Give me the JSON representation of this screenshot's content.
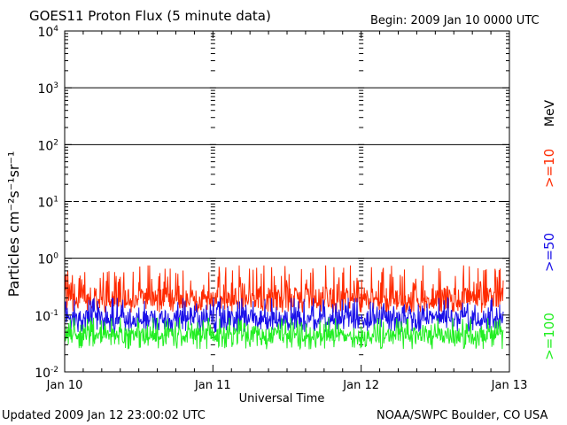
{
  "header": {
    "title": "GOES11 Proton Flux (5 minute data)",
    "begin": "Begin: 2009 Jan 10 0000 UTC"
  },
  "footer": {
    "updated": "Updated 2009 Jan 12 23:00:02 UTC",
    "source": "NOAA/SWPC Boulder, CO USA"
  },
  "chart_data": {
    "type": "line",
    "title": "GOES11 Proton Flux (5 minute data)",
    "xlabel": "Universal Time",
    "ylabel": "Particles cm⁻²s⁻¹sr⁻¹",
    "yscale": "log",
    "ylim": [
      0.01,
      10000
    ],
    "yticks": [
      {
        "base": "10",
        "exp": "-2",
        "value": 0.01
      },
      {
        "base": "10",
        "exp": "-1",
        "value": 0.1
      },
      {
        "base": "10",
        "exp": "0",
        "value": 1
      },
      {
        "base": "10",
        "exp": "1",
        "value": 10
      },
      {
        "base": "10",
        "exp": "2",
        "value": 100
      },
      {
        "base": "10",
        "exp": "3",
        "value": 1000
      },
      {
        "base": "10",
        "exp": "4",
        "value": 10000
      }
    ],
    "xticks": [
      "Jan 10",
      "Jan 11",
      "Jan 12",
      "Jan 13"
    ],
    "xlim": [
      "2009-01-10 00:00",
      "2009-01-13 00:00"
    ],
    "data_end": "2009-01-12 23:00",
    "threshold_lines": [
      {
        "value": 10,
        "style": "dashed"
      },
      {
        "value": 1,
        "style": "solid"
      },
      {
        "value": 100,
        "style": "solid"
      },
      {
        "value": 1000,
        "style": "solid"
      }
    ],
    "unit_label": "MeV",
    "series": [
      {
        "name": ">=10",
        "color": "#ff2a00",
        "baseline": 0.2,
        "range": [
          0.11,
          0.75
        ]
      },
      {
        "name": ">=50",
        "color": "#1a10e8",
        "baseline": 0.09,
        "range": [
          0.05,
          0.2
        ]
      },
      {
        "name": ">=100",
        "color": "#22ee22",
        "baseline": 0.045,
        "range": [
          0.025,
          0.09
        ]
      }
    ]
  }
}
